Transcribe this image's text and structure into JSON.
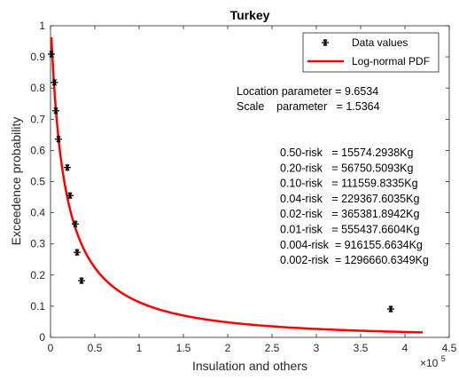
{
  "chart_data": {
    "type": "line",
    "title": "Turkey",
    "xlabel": "Insulation and others",
    "ylabel": "Exceedence probability",
    "x_multiplier_label": "×10",
    "x_multiplier_exp": "5",
    "xlim": [
      0,
      450000
    ],
    "ylim": [
      0,
      1
    ],
    "x_ticks": [
      0,
      50000,
      100000,
      150000,
      200000,
      250000,
      300000,
      350000,
      400000,
      450000
    ],
    "x_tick_labels": [
      "0",
      "0.5",
      "1",
      "1.5",
      "2",
      "2.5",
      "3",
      "3.5",
      "4",
      "4.5"
    ],
    "y_ticks": [
      0,
      0.1,
      0.2,
      0.3,
      0.4,
      0.5,
      0.6,
      0.7,
      0.8,
      0.9,
      1
    ],
    "y_tick_labels": [
      "0",
      "0.1",
      "0.2",
      "0.3",
      "0.4",
      "0.5",
      "0.6",
      "0.7",
      "0.8",
      "0.9",
      "1"
    ],
    "grid": false,
    "legend_position": "top-right",
    "series": [
      {
        "name": "Data values",
        "kind": "scatter",
        "marker": "asterisk",
        "color": "#000000",
        "x": [
          1000,
          4500,
          6000,
          9000,
          19000,
          22000,
          28000,
          30000,
          35000,
          384000
        ],
        "y": [
          0.909,
          0.818,
          0.727,
          0.636,
          0.545,
          0.455,
          0.364,
          0.273,
          0.182,
          0.091
        ]
      },
      {
        "name": "Log-normal PDF",
        "kind": "line",
        "color": "#ff0000",
        "distribution": "lognormal-exceedance",
        "location_parameter": 9.6534,
        "scale_parameter": 1.5364,
        "x_range": [
          1000,
          420000
        ]
      }
    ],
    "annotations": {
      "location": "Location parameter = 9.6534",
      "scale": "Scale    parameter   = 1.5364",
      "risks": [
        "0.50-risk   = 15574.2938Kg",
        "0.20-risk   = 56750.5093Kg",
        "0.10-risk   = 111559.8335Kg",
        "0.04-risk   = 229367.6035Kg",
        "0.02-risk   = 365381.8942Kg",
        "0.01-risk   = 555437.6604Kg",
        "0.004-risk  = 916155.6634Kg",
        "0.002-risk  = 1296660.6349Kg"
      ]
    }
  }
}
